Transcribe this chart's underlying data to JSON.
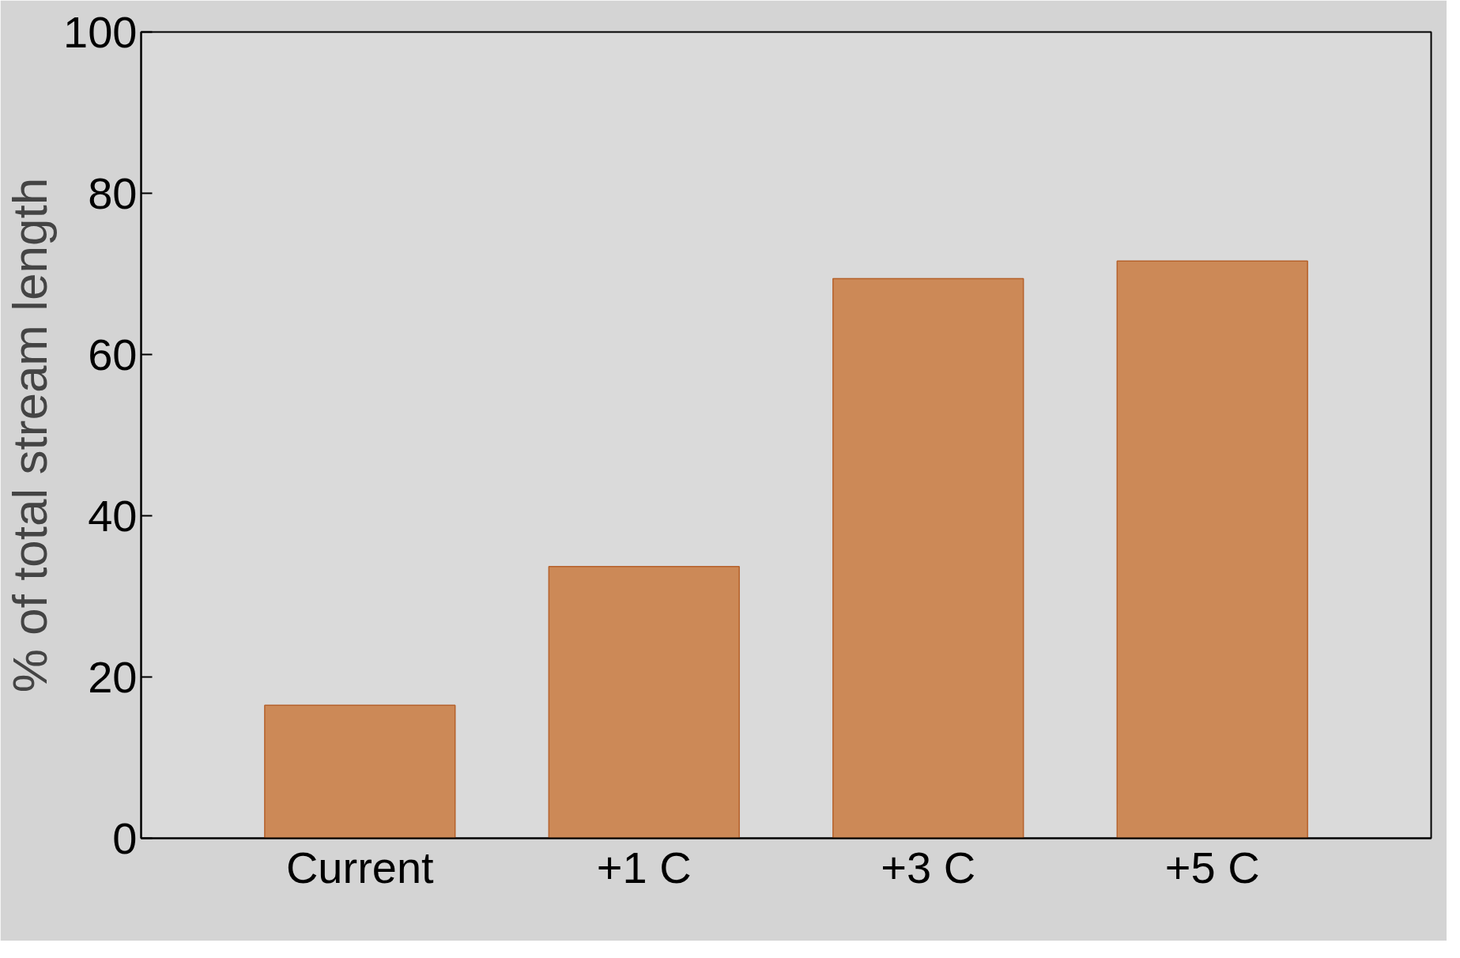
{
  "chart_data": {
    "type": "bar",
    "ylabel": "% of total stream length",
    "categories": [
      "Current",
      "+1 C",
      "+3 C",
      "+5 C"
    ],
    "values": [
      16.5,
      33.7,
      69.4,
      71.6
    ],
    "color": "#cc8957",
    "ylim": [
      0,
      100
    ],
    "yticks": [
      0,
      20,
      40,
      60,
      80,
      100
    ],
    "grid": false
  }
}
